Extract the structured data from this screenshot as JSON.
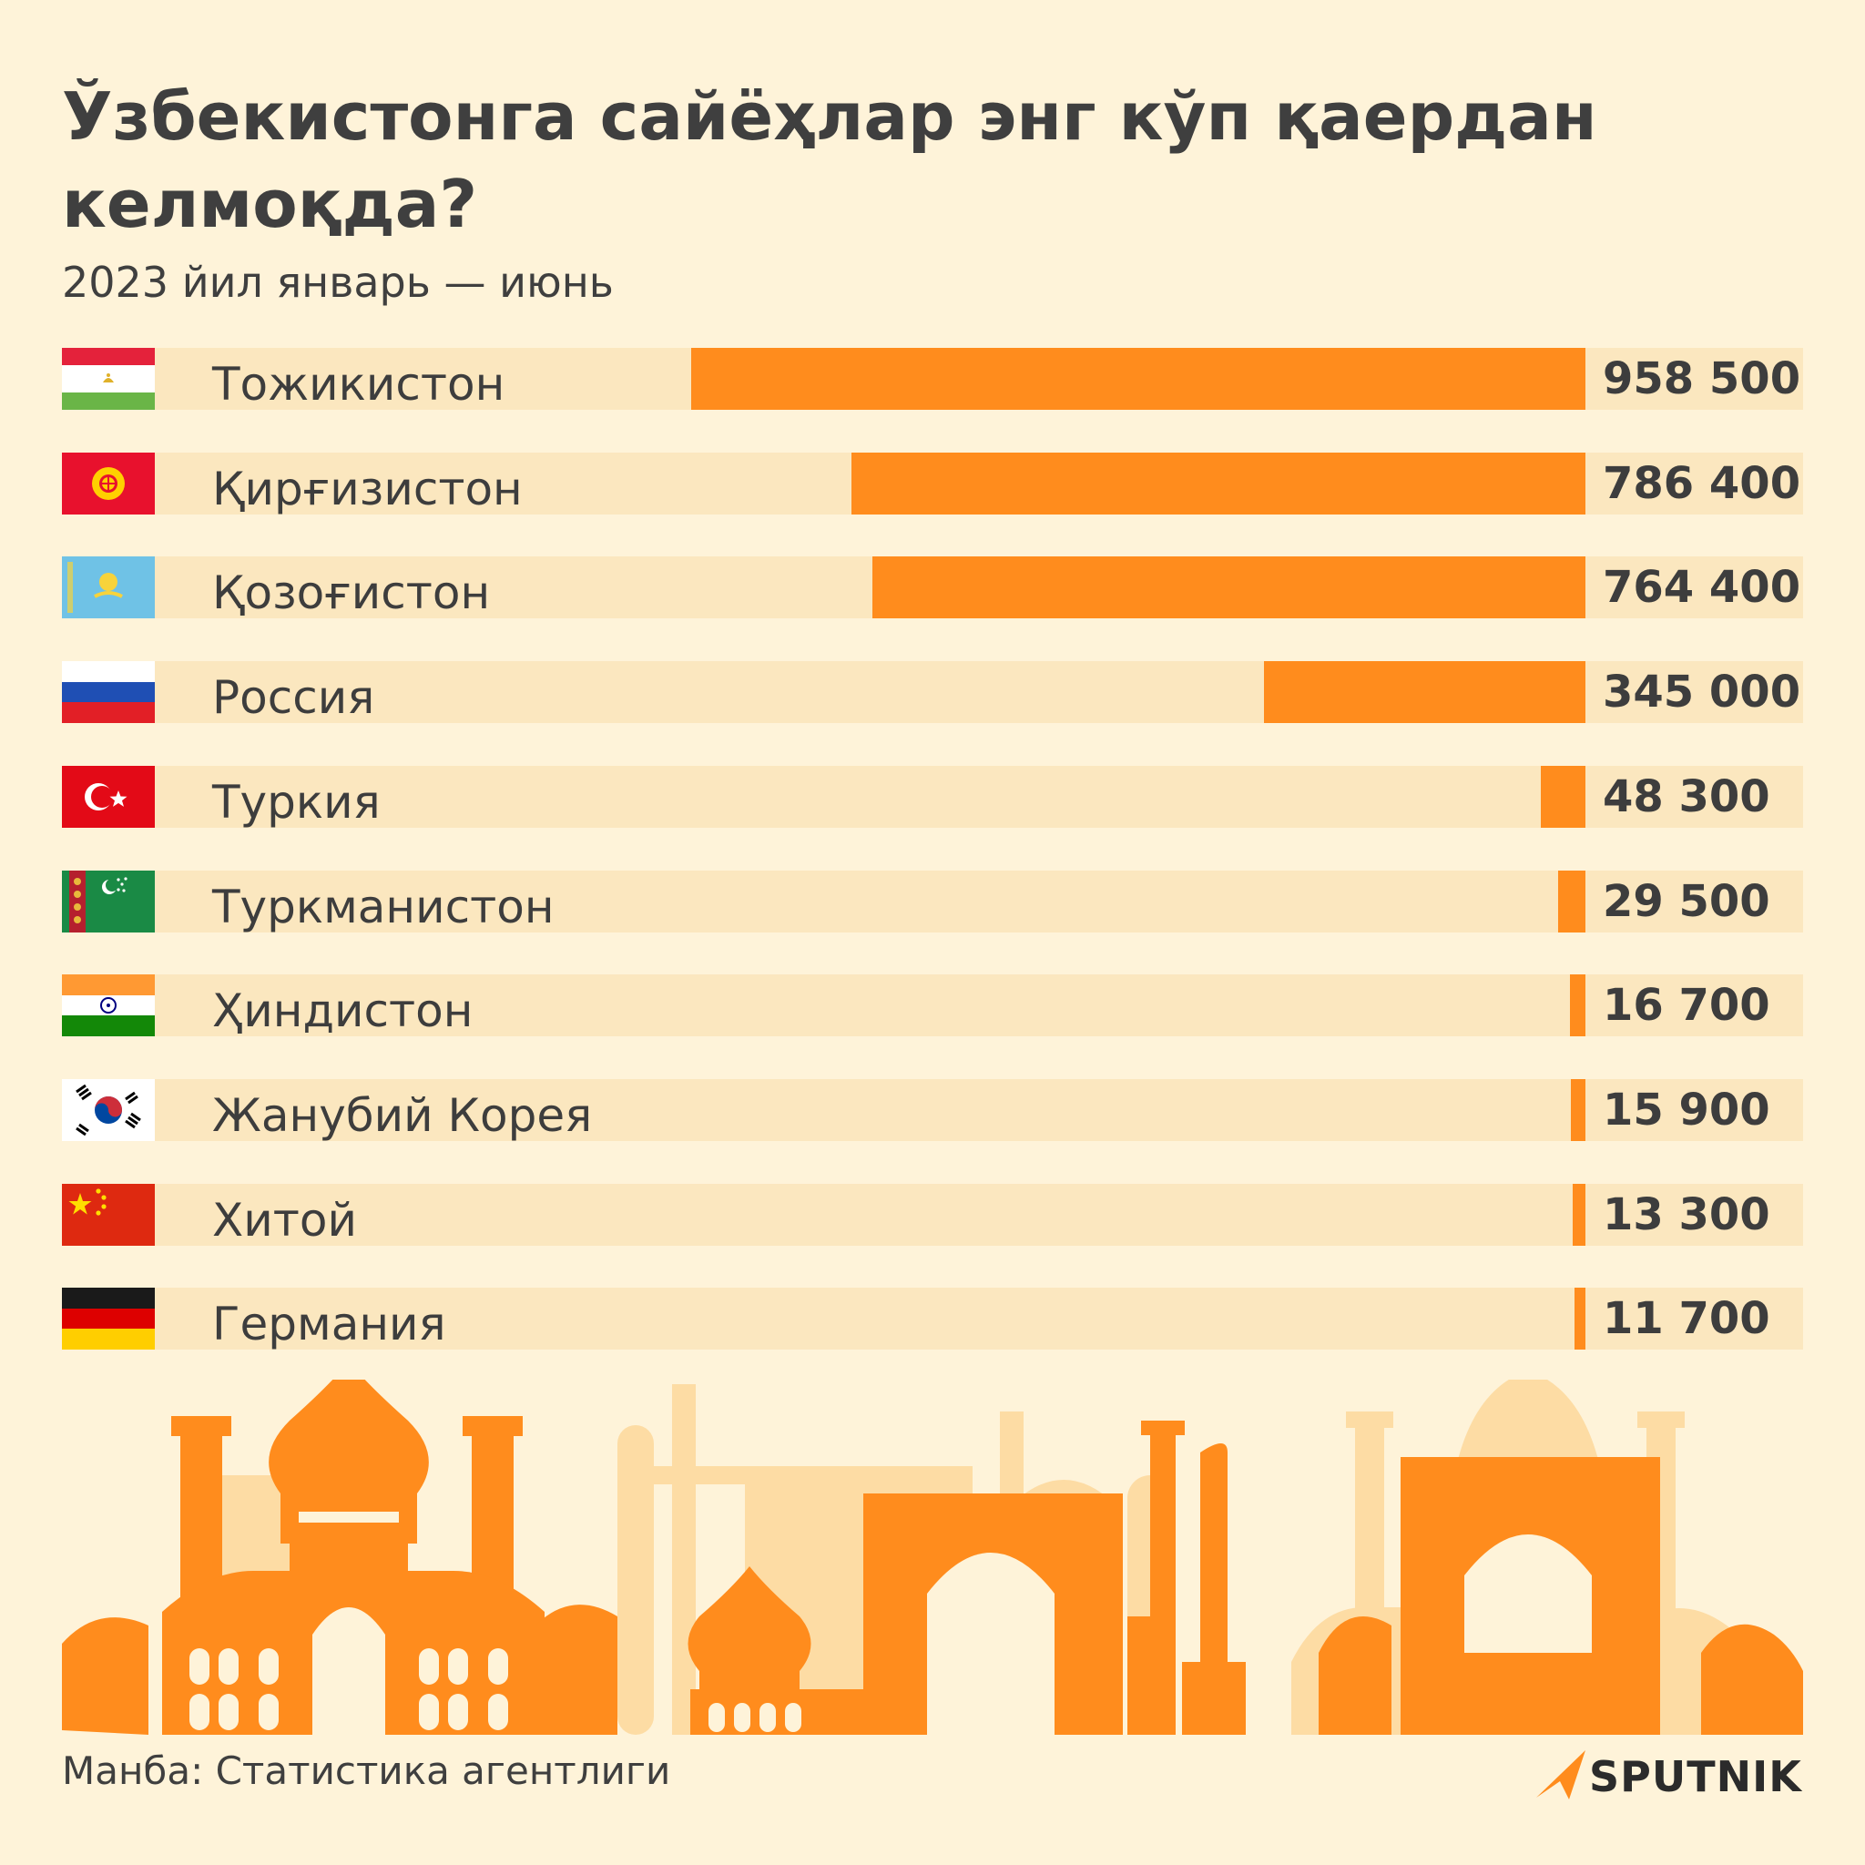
{
  "title": "Ўзбекистонга сайёҳлар энг кўп қаердан келмоқда?",
  "subtitle": "2023 йил январь — июнь",
  "source": "Манба: Статистика агентлиги",
  "brand": "SPUTNIK",
  "colors": {
    "background": "#fef3d9",
    "track": "#fbe7bf",
    "bar": "#ff8c1d",
    "text": "#3d3d3d"
  },
  "chart_data": {
    "type": "bar",
    "orientation": "horizontal",
    "title": "Ўзбекистонга сайёҳлар энг кўп қаердан келмоқда?",
    "subtitle": "2023 йил январь — июнь",
    "categories": [
      "Тожикистон",
      "Қирғизистон",
      "Қозоғистон",
      "Россия",
      "Туркия",
      "Туркманистон",
      "Ҳиндистон",
      "Жанубий Корея",
      "Хитой",
      "Германия"
    ],
    "values": [
      958500,
      786400,
      764400,
      345000,
      48300,
      29500,
      16700,
      15900,
      13300,
      11700
    ],
    "value_labels": [
      "958 500",
      "786 400",
      "764 400",
      "345 000",
      "48 300",
      "29 500",
      "16 700",
      "15 900",
      "13 300",
      "11 700"
    ],
    "flags": [
      "tajikistan-flag-icon",
      "kyrgyzstan-flag-icon",
      "kazakhstan-flag-icon",
      "russia-flag-icon",
      "turkey-flag-icon",
      "turkmenistan-flag-icon",
      "india-flag-icon",
      "south-korea-flag-icon",
      "china-flag-icon",
      "germany-flag-icon"
    ],
    "xlim": [
      0,
      958500
    ],
    "grid": false,
    "legend": "none"
  }
}
